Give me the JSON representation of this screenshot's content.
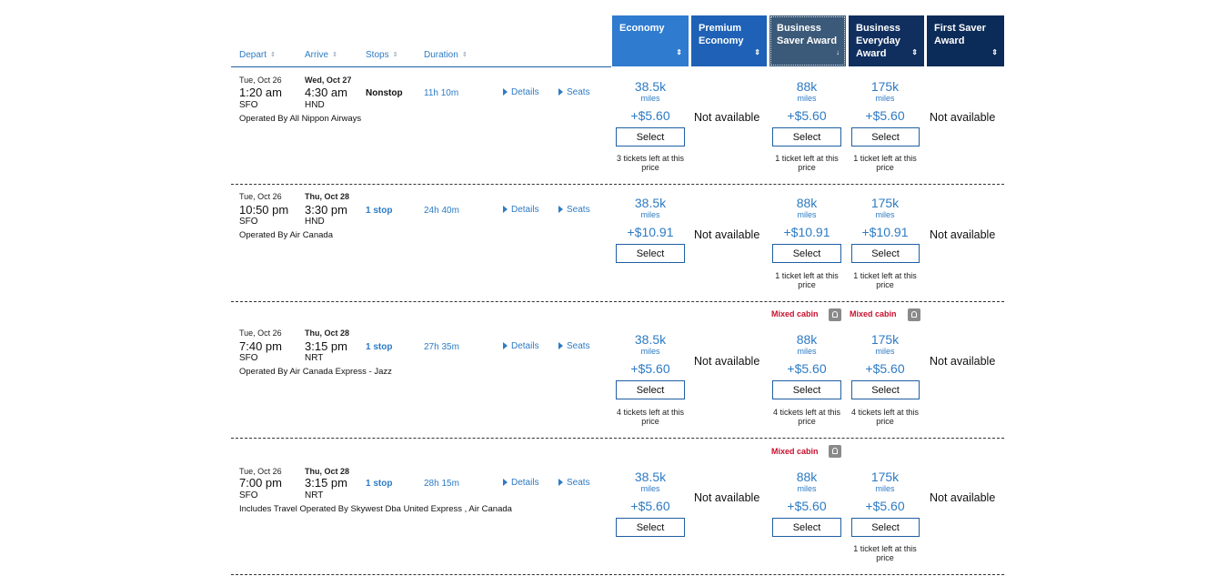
{
  "columns": {
    "depart": "Depart",
    "arrive": "Arrive",
    "stops": "Stops",
    "duration": "Duration",
    "sort_icon": "⇕"
  },
  "cabins": [
    {
      "label": "Economy",
      "sort_icon": "⇕"
    },
    {
      "label": "Premium Economy",
      "sort_icon": "⇕"
    },
    {
      "label": "Business Saver Award",
      "sort_icon": "↓"
    },
    {
      "label": "Business Everyday Award",
      "sort_icon": "⇕"
    },
    {
      "label": "First Saver Award",
      "sort_icon": "⇕"
    }
  ],
  "links": {
    "details": "Details",
    "seats": "Seats",
    "select": "Select",
    "miles": "miles",
    "not_available": "Not available",
    "mixed_cabin": "Mixed cabin"
  },
  "flights": [
    {
      "depart_date": "Tue, Oct 26",
      "depart_time": "1:20 am",
      "depart_airport": "SFO",
      "arrive_date": "Wed, Oct 27",
      "arrive_time": "4:30 am",
      "arrive_airport": "HND",
      "stops": "Nonstop",
      "duration": "11h 10m",
      "operated": "Operated By All Nippon Airways",
      "economy": {
        "miles": "38.5k",
        "tax": "+$5.60",
        "note": "3 tickets left at this price"
      },
      "business_saver": {
        "miles": "88k",
        "tax": "+$5.60",
        "note": "1 ticket left at this price"
      },
      "business_everyday": {
        "miles": "175k",
        "tax": "+$5.60",
        "note": "1 ticket left at this price"
      }
    },
    {
      "depart_date": "Tue, Oct 26",
      "depart_time": "10:50 pm",
      "depart_airport": "SFO",
      "arrive_date": "Thu, Oct 28",
      "arrive_time": "3:30 pm",
      "arrive_airport": "HND",
      "stops": "1 stop",
      "duration": "24h 40m",
      "operated": "Operated By Air Canada",
      "economy": {
        "miles": "38.5k",
        "tax": "+$10.91",
        "note": ""
      },
      "business_saver": {
        "miles": "88k",
        "tax": "+$10.91",
        "note": "1 ticket left at this price"
      },
      "business_everyday": {
        "miles": "175k",
        "tax": "+$10.91",
        "note": "1 ticket left at this price"
      }
    },
    {
      "depart_date": "Tue, Oct 26",
      "depart_time": "7:40 pm",
      "depart_airport": "SFO",
      "arrive_date": "Thu, Oct 28",
      "arrive_time": "3:15 pm",
      "arrive_airport": "NRT",
      "stops": "1 stop",
      "duration": "27h 35m",
      "operated": "Operated By Air Canada Express - Jazz",
      "economy": {
        "miles": "38.5k",
        "tax": "+$5.60",
        "note": "4 tickets left at this price"
      },
      "business_saver": {
        "miles": "88k",
        "tax": "+$5.60",
        "note": "4 tickets left at this price"
      },
      "business_everyday": {
        "miles": "175k",
        "tax": "+$5.60",
        "note": "4 tickets left at this price"
      }
    },
    {
      "depart_date": "Tue, Oct 26",
      "depart_time": "7:00 pm",
      "depart_airport": "SFO",
      "arrive_date": "Thu, Oct 28",
      "arrive_time": "3:15 pm",
      "arrive_airport": "NRT",
      "stops": "1 stop",
      "duration": "28h 15m",
      "operated": "Includes Travel Operated By Skywest Dba United Express , Air Canada",
      "economy": {
        "miles": "38.5k",
        "tax": "+$5.60",
        "note": ""
      },
      "business_saver": {
        "miles": "88k",
        "tax": "+$5.60",
        "note": ""
      },
      "business_everyday": {
        "miles": "175k",
        "tax": "+$5.60",
        "note": "1 ticket left at this price"
      }
    }
  ]
}
